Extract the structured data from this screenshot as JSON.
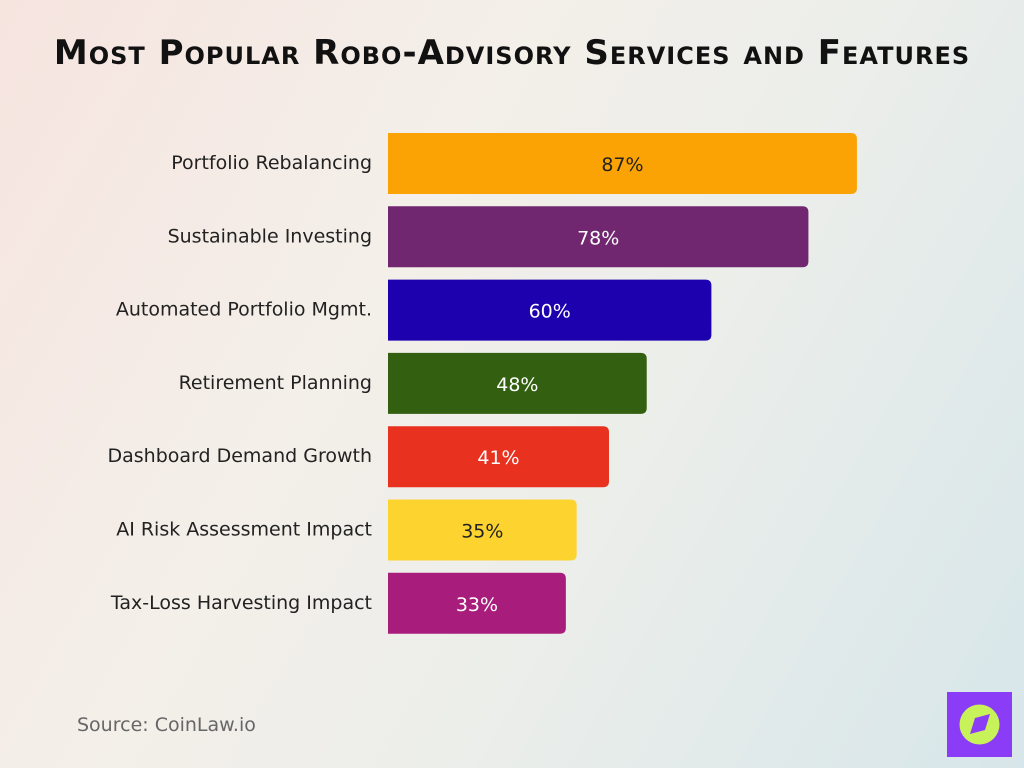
{
  "chart_data": {
    "type": "bar",
    "orientation": "horizontal",
    "title": "Most Popular Robo-Advisory Services and Features",
    "categories": [
      "Portfolio Rebalancing",
      "Sustainable Investing",
      "Automated Portfolio Mgmt.",
      "Retirement Planning",
      "Dashboard Demand Growth",
      "AI Risk Assessment Impact",
      "Tax-Loss Harvesting Impact"
    ],
    "values": [
      87,
      78,
      60,
      48,
      41,
      35,
      33
    ],
    "value_labels": [
      "87%",
      "78%",
      "60%",
      "48%",
      "41%",
      "35%",
      "33%"
    ],
    "colors": [
      "#fba304",
      "#71276f",
      "#1d00ae",
      "#325f10",
      "#e8311f",
      "#fdd330",
      "#a81d7b"
    ],
    "source": "Source: CoinLaw.io"
  }
}
